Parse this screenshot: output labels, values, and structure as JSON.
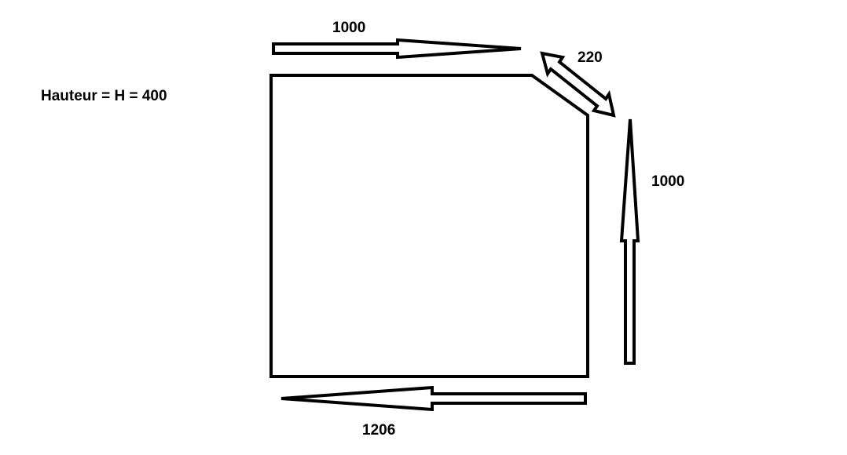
{
  "height_label": "Hauteur = H = 400",
  "dimensions": {
    "top": "1000",
    "diagonal": "220",
    "right": "1000",
    "bottom": "1206"
  },
  "colors": {
    "background": "#ffffff",
    "stroke": "#000000"
  }
}
